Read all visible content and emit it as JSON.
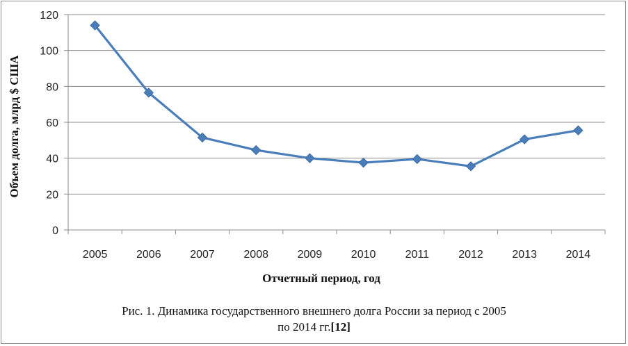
{
  "chart_data": {
    "type": "line",
    "categories": [
      "2005",
      "2006",
      "2007",
      "2008",
      "2009",
      "2010",
      "2011",
      "2012",
      "2013",
      "2014"
    ],
    "series": [
      {
        "values": [
          114,
          76.5,
          51.5,
          44.5,
          40,
          37.5,
          39.5,
          35.5,
          50.5,
          55.5
        ],
        "color": "#4a7ebb"
      }
    ],
    "xlabel": "Отчетный период, год",
    "ylabel": "Объем долга, млрд $ США",
    "ylim": [
      0,
      120
    ],
    "yticks": [
      "0",
      "20",
      "40",
      "60",
      "80",
      "100",
      "120"
    ],
    "grid": "horizontal",
    "legend": "none",
    "marker": "diamond"
  },
  "caption": {
    "line1": "Рис. 1. Динамика государственного внешнего долга России за период с 2005",
    "line2": "по 2014 гг.",
    "ref": "[12]"
  }
}
